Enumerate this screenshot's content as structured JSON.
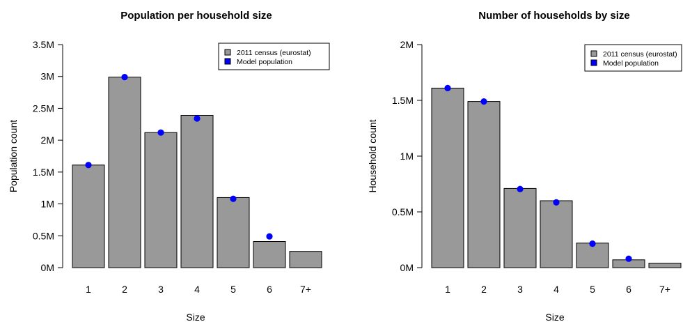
{
  "chart_data": [
    {
      "type": "bar",
      "title": "Population per household size",
      "xlabel": "Size",
      "ylabel": "Population count",
      "categories": [
        "1",
        "2",
        "3",
        "4",
        "5",
        "6",
        "7+"
      ],
      "ylim": [
        0,
        3500000
      ],
      "yticks": [
        0,
        500000,
        1000000,
        1500000,
        2000000,
        2500000,
        3000000,
        3500000
      ],
      "ytick_labels": [
        "0M",
        "0.5M",
        "1M",
        "1.5M",
        "2M",
        "2.5M",
        "3M",
        "3.5M"
      ],
      "series": [
        {
          "name": "2011 census (eurostat)",
          "kind": "bar",
          "color": "#999999",
          "values": [
            1610000,
            2990000,
            2120000,
            2390000,
            1100000,
            410000,
            255000
          ]
        },
        {
          "name": "Model population",
          "kind": "point",
          "color": "#0000ff",
          "values": [
            1610000,
            2990000,
            2120000,
            2340000,
            1080000,
            490000,
            null
          ]
        }
      ],
      "legend": "top-right",
      "grid": false
    },
    {
      "type": "bar",
      "title": "Number of households by size",
      "xlabel": "Size",
      "ylabel": "Household count",
      "categories": [
        "1",
        "2",
        "3",
        "4",
        "5",
        "6",
        "7+"
      ],
      "ylim": [
        0,
        2000000
      ],
      "yticks": [
        0,
        500000,
        1000000,
        1500000,
        2000000
      ],
      "ytick_labels": [
        "0M",
        "0.5M",
        "1M",
        "1.5M",
        "2M"
      ],
      "series": [
        {
          "name": "2011 census (eurostat)",
          "kind": "bar",
          "color": "#999999",
          "values": [
            1610000,
            1490000,
            710000,
            600000,
            220000,
            70000,
            40000
          ]
        },
        {
          "name": "Model population",
          "kind": "point",
          "color": "#0000ff",
          "values": [
            1610000,
            1490000,
            705000,
            585000,
            215000,
            80000,
            null
          ]
        }
      ],
      "legend": "top-right",
      "grid": false
    }
  ]
}
